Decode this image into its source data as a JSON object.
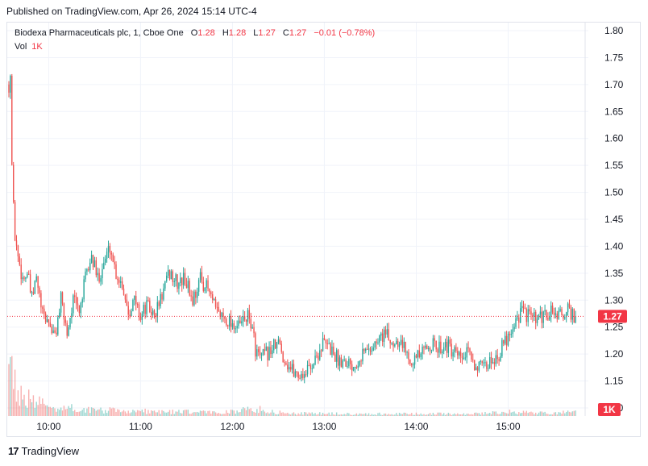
{
  "header": {
    "published": "Published on TradingView.com, Apr 26, 2024 15:14 UTC-4"
  },
  "legend": {
    "title": "Biodexa Pharmaceuticals plc, 1, Cboe One",
    "o_label": "O",
    "o_value": "1.28",
    "h_label": "H",
    "h_value": "1.28",
    "l_label": "L",
    "l_value": "1.27",
    "c_label": "C",
    "c_value": "1.27",
    "change": "−0.01 (−0.78%)",
    "vol_label": "Vol",
    "vol_value": "1K"
  },
  "footer": {
    "brand": "TradingView",
    "logo_text": "17"
  },
  "colors": {
    "up": "#26a69a",
    "down": "#ef5350",
    "price_line": "#f23645",
    "grid": "#f0f3fa",
    "text": "#131722"
  },
  "chart_data": {
    "type": "candlestick",
    "x_ticks": [
      "10:00",
      "11:00",
      "12:00",
      "13:00",
      "14:00",
      "15:00"
    ],
    "y_ticks": [
      1.8,
      1.75,
      1.7,
      1.65,
      1.6,
      1.55,
      1.5,
      1.45,
      1.4,
      1.35,
      1.3,
      1.25,
      1.2,
      1.15,
      1.1
    ],
    "ylim": [
      1.085,
      1.815
    ],
    "last_price": 1.27,
    "last_price_label": "1.27",
    "volume_label": "1K",
    "grid": true,
    "price_path": [
      [
        0,
        1.7
      ],
      [
        1,
        1.72
      ],
      [
        2,
        1.55
      ],
      [
        3,
        1.47
      ],
      [
        4,
        1.42
      ],
      [
        6,
        1.38
      ],
      [
        9,
        1.34
      ],
      [
        12,
        1.35
      ],
      [
        15,
        1.3
      ],
      [
        18,
        1.34
      ],
      [
        22,
        1.27
      ],
      [
        26,
        1.26
      ],
      [
        30,
        1.23
      ],
      [
        34,
        1.3
      ],
      [
        38,
        1.24
      ],
      [
        42,
        1.3
      ],
      [
        46,
        1.28
      ],
      [
        50,
        1.34
      ],
      [
        54,
        1.38
      ],
      [
        58,
        1.34
      ],
      [
        62,
        1.37
      ],
      [
        66,
        1.4
      ],
      [
        70,
        1.35
      ],
      [
        74,
        1.33
      ],
      [
        78,
        1.28
      ],
      [
        82,
        1.3
      ],
      [
        86,
        1.27
      ],
      [
        90,
        1.29
      ],
      [
        95,
        1.27
      ],
      [
        100,
        1.31
      ],
      [
        105,
        1.35
      ],
      [
        110,
        1.33
      ],
      [
        115,
        1.34
      ],
      [
        120,
        1.3
      ],
      [
        125,
        1.34
      ],
      [
        130,
        1.32
      ],
      [
        135,
        1.28
      ],
      [
        140,
        1.27
      ],
      [
        145,
        1.26
      ],
      [
        150,
        1.25
      ],
      [
        155,
        1.27
      ],
      [
        158,
        1.26
      ],
      [
        161,
        1.21
      ],
      [
        164,
        1.19
      ],
      [
        168,
        1.2
      ],
      [
        172,
        1.21
      ],
      [
        176,
        1.22
      ],
      [
        180,
        1.19
      ],
      [
        185,
        1.17
      ],
      [
        190,
        1.16
      ],
      [
        195,
        1.17
      ],
      [
        200,
        1.19
      ],
      [
        205,
        1.22
      ],
      [
        210,
        1.21
      ],
      [
        215,
        1.19
      ],
      [
        220,
        1.19
      ],
      [
        225,
        1.18
      ],
      [
        230,
        1.2
      ],
      [
        235,
        1.21
      ],
      [
        240,
        1.22
      ],
      [
        245,
        1.24
      ],
      [
        250,
        1.22
      ],
      [
        255,
        1.23
      ],
      [
        260,
        1.2
      ],
      [
        265,
        1.19
      ],
      [
        270,
        1.2
      ],
      [
        275,
        1.22
      ],
      [
        280,
        1.21
      ],
      [
        285,
        1.22
      ],
      [
        290,
        1.2
      ],
      [
        295,
        1.19
      ],
      [
        300,
        1.2
      ],
      [
        305,
        1.18
      ],
      [
        310,
        1.17
      ],
      [
        315,
        1.19
      ],
      [
        320,
        1.2
      ],
      [
        325,
        1.23
      ],
      [
        330,
        1.26
      ],
      [
        335,
        1.28
      ],
      [
        340,
        1.27
      ],
      [
        345,
        1.26
      ],
      [
        350,
        1.27
      ],
      [
        355,
        1.28
      ],
      [
        360,
        1.27
      ],
      [
        365,
        1.28
      ],
      [
        370,
        1.27
      ]
    ],
    "volume_path": [
      [
        0,
        1.0
      ],
      [
        2,
        0.6
      ],
      [
        5,
        0.4
      ],
      [
        10,
        0.25
      ],
      [
        20,
        0.18
      ],
      [
        30,
        0.12
      ],
      [
        60,
        0.08
      ],
      [
        100,
        0.06
      ],
      [
        140,
        0.05
      ],
      [
        160,
        0.1
      ],
      [
        180,
        0.04
      ],
      [
        220,
        0.03
      ],
      [
        260,
        0.03
      ],
      [
        300,
        0.03
      ],
      [
        330,
        0.06
      ],
      [
        350,
        0.04
      ],
      [
        370,
        0.05
      ]
    ],
    "minutes_start": 0,
    "minutes_end": 371,
    "tick_minutes": [
      26,
      86,
      146,
      206,
      266,
      326
    ]
  }
}
